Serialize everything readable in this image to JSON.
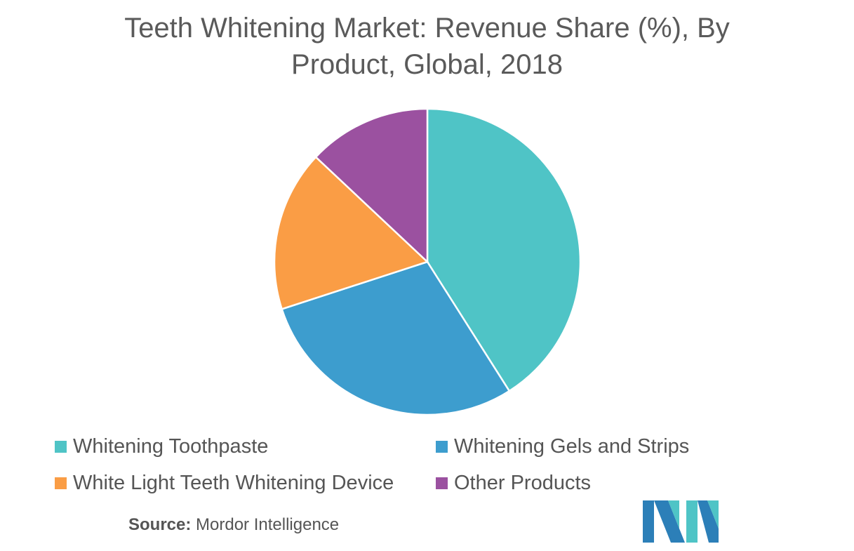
{
  "title_line1": "Teeth Whitening Market: Revenue Share (%), By",
  "title_line2": "Product, Global, 2018",
  "chart_data": {
    "type": "pie",
    "title": "Teeth Whitening Market: Revenue Share (%), By Product, Global, 2018",
    "slices": [
      {
        "label": "Whitening Toothpaste",
        "value": 41,
        "color": "#4fc4c6"
      },
      {
        "label": "Whitening Gels and Strips",
        "value": 29,
        "color": "#3d9dce"
      },
      {
        "label": "White Light Teeth Whitening Device",
        "value": 17,
        "color": "#fa9d45"
      },
      {
        "label": "Other Products",
        "value": 13,
        "color": "#9b51a0"
      }
    ],
    "legend_position": "bottom"
  },
  "source_label": "Source:",
  "source_value": "Mordor Intelligence",
  "logo": {
    "icon": "mordor-intelligence-logo",
    "colors": [
      "#2c7fb8",
      "#4fc4c6"
    ]
  }
}
